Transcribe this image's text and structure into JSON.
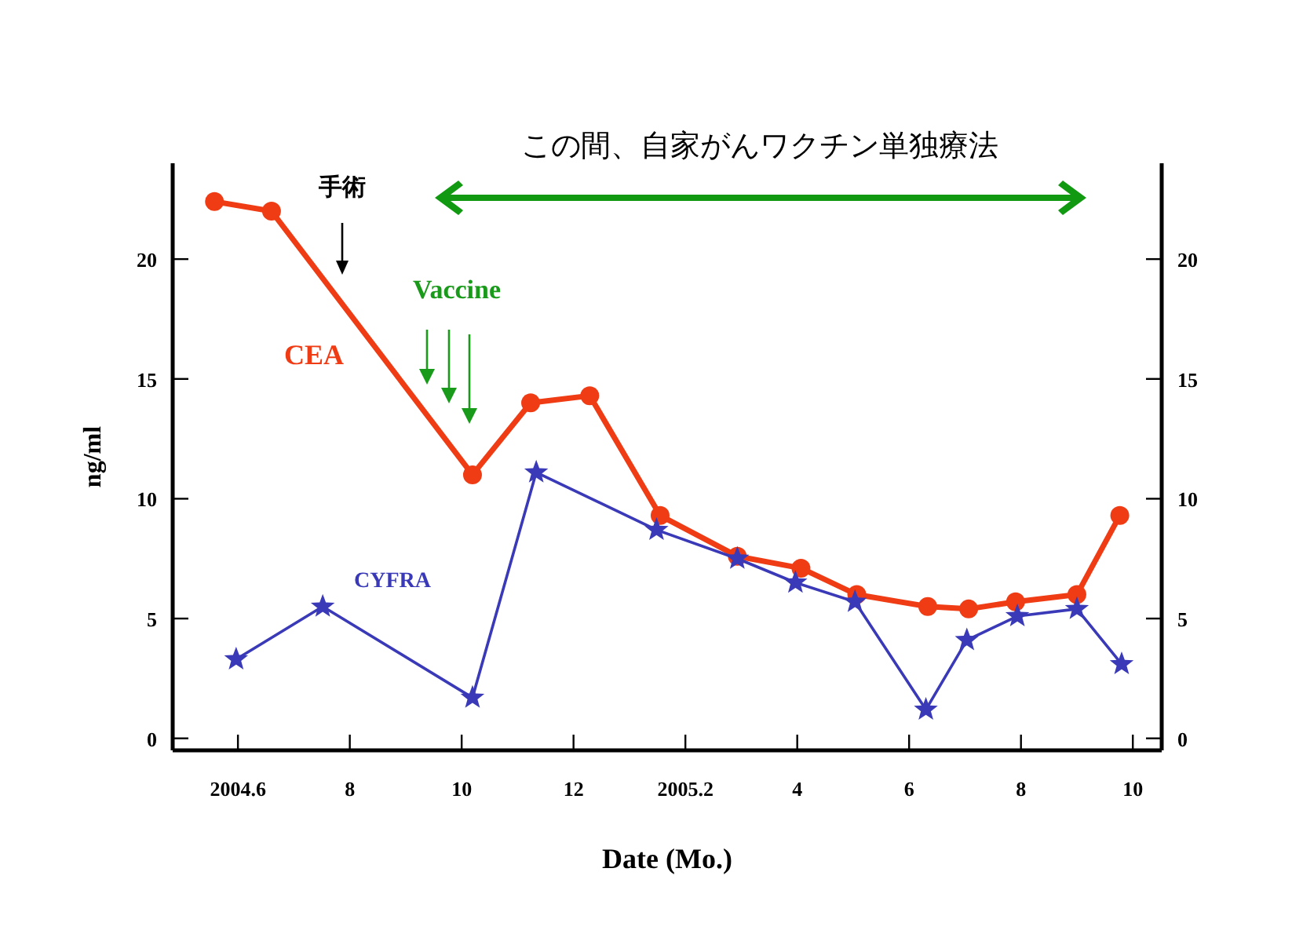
{
  "chart_data": {
    "type": "line",
    "xlabel": "Date (Mo.)",
    "ylabel": "ng/ml",
    "series": [
      {
        "name": "CEA",
        "color": "#f03c14",
        "marker": "circle",
        "x": [
          "2004-05-19",
          "2004-06-19",
          "2004-10-07",
          "2004-11-08",
          "2004-12-10",
          "2005-01-18",
          "2005-02-27",
          "2005-04-03",
          "2005-05-03",
          "2005-06-11",
          "2005-07-03",
          "2005-07-29",
          "2005-09-01",
          "2005-09-24"
        ],
        "values": [
          22.4,
          22.0,
          11.0,
          14.0,
          14.3,
          9.3,
          7.6,
          7.1,
          6.0,
          5.5,
          5.4,
          5.7,
          6.0,
          9.3
        ]
      },
      {
        "name": "CYFRA",
        "color": "#3a3ab8",
        "marker": "star",
        "x": [
          "2004-05-31",
          "2004-07-17",
          "2004-10-07",
          "2004-11-11",
          "2005-01-16",
          "2005-02-27",
          "2005-03-31",
          "2005-05-02",
          "2005-06-10",
          "2005-07-02",
          "2005-07-30",
          "2005-09-01",
          "2005-09-25"
        ],
        "values": [
          3.3,
          5.5,
          1.7,
          11.1,
          8.7,
          7.5,
          6.5,
          5.7,
          1.2,
          4.1,
          5.1,
          5.4,
          3.1
        ]
      }
    ],
    "xlim": [
      "2004-04-26",
      "2005-10-17"
    ],
    "xticks": [
      {
        "value": "2004-06-01",
        "label": "2004.6"
      },
      {
        "value": "2004-08-01",
        "label": "8"
      },
      {
        "value": "2004-10-01",
        "label": "10"
      },
      {
        "value": "2004-12-01",
        "label": "12"
      },
      {
        "value": "2005-02-01",
        "label": "2005.2"
      },
      {
        "value": "2005-04-01",
        "label": "4"
      },
      {
        "value": "2005-06-01",
        "label": "6"
      },
      {
        "value": "2005-08-01",
        "label": "8"
      },
      {
        "value": "2005-10-01",
        "label": "10"
      }
    ],
    "ylim": [
      -0.5,
      24
    ],
    "yticks": [
      0,
      5,
      10,
      15,
      20
    ],
    "y2lim": [
      -0.5,
      24
    ],
    "y2ticks": [
      0,
      5,
      10,
      15,
      20
    ],
    "grid": false,
    "title": "この間、自家がんワクチン単独療法",
    "annotations": [
      "手術",
      "Vaccine"
    ]
  }
}
